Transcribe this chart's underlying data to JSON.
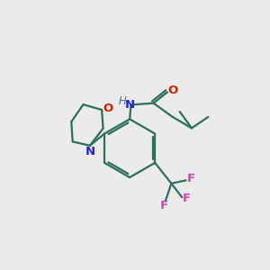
{
  "background_color": "#ebebeb",
  "bond_color": "#2d6e5e",
  "o_color": "#cc2200",
  "n_color": "#2222cc",
  "f_color": "#cc44aa",
  "h_color": "#4a7a7a",
  "line_width": 1.6,
  "figsize": [
    3.0,
    3.0
  ],
  "dpi": 100,
  "xlim": [
    0,
    10
  ],
  "ylim": [
    0,
    10
  ]
}
